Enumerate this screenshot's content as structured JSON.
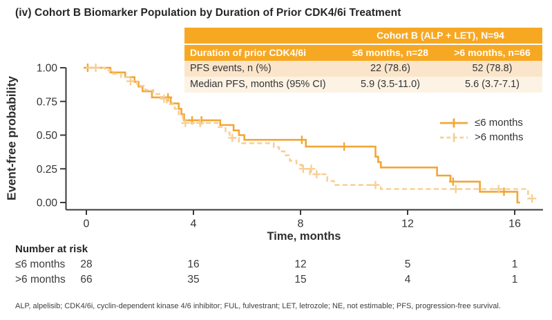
{
  "title": "(iv) Cohort B Biomarker Population by Duration of Prior CDK4/6i Treatment",
  "colors": {
    "header_orange": "#F7A823",
    "row_peach": "#FAE5CB",
    "row_cream": "#FDF3E4",
    "solid_curve": "#F2A636",
    "dashed_curve": "#F8CF96",
    "axis": "#3a3a3a",
    "tick_text": "#333333"
  },
  "summary_table": {
    "merged_header": "Cohort B (ALP + LET), N=94",
    "col_header_row": [
      "Duration of prior CDK4/6i",
      "≤6 months, n=28",
      ">6 months, n=66"
    ],
    "rows": [
      [
        "PFS events, n (%)",
        "22 (78.6)",
        "52 (78.8)"
      ],
      [
        "Median PFS, months (95% CI)",
        "5.9 (3.5-11.0)",
        "5.6 (3.7-7.1)"
      ]
    ]
  },
  "chart_data": {
    "type": "line",
    "subtype": "kaplan-meier-step",
    "xlabel": "Time, months",
    "ylabel": "Event-free probability",
    "xlim": [
      0,
      17.2
    ],
    "ylim": [
      0,
      1.0
    ],
    "xticks": [
      0,
      4,
      8,
      12,
      16
    ],
    "yticks": [
      0.0,
      0.25,
      0.5,
      0.75,
      1.0
    ],
    "ytick_labels": [
      "0.00",
      "0.25",
      "0.50",
      "0.75",
      "1.00"
    ],
    "grid": false,
    "legend_position": "right-middle",
    "series": [
      {
        "name": "≤6 months",
        "style": "solid",
        "n": 28,
        "points": [
          [
            0,
            1.0
          ],
          [
            0.9,
            0.965
          ],
          [
            1.45,
            0.93
          ],
          [
            1.8,
            0.895
          ],
          [
            1.95,
            0.86
          ],
          [
            2.1,
            0.825
          ],
          [
            2.45,
            0.78
          ],
          [
            3.15,
            0.735
          ],
          [
            3.45,
            0.695
          ],
          [
            3.55,
            0.655
          ],
          [
            3.65,
            0.61
          ],
          [
            5.0,
            0.575
          ],
          [
            5.5,
            0.535
          ],
          [
            5.7,
            0.5
          ],
          [
            5.9,
            0.465
          ],
          [
            8.2,
            0.415
          ],
          [
            10.8,
            0.34
          ],
          [
            10.9,
            0.3
          ],
          [
            11.0,
            0.26
          ],
          [
            13.1,
            0.2
          ],
          [
            13.6,
            0.155
          ],
          [
            14.7,
            0.08
          ],
          [
            16.1,
            0.0
          ]
        ],
        "end_time": 16.2,
        "censors": [
          [
            0.05,
            1.0
          ],
          [
            3.05,
            0.78
          ],
          [
            3.95,
            0.61
          ],
          [
            4.3,
            0.61
          ],
          [
            8.05,
            0.465
          ],
          [
            9.63,
            0.415
          ],
          [
            13.7,
            0.155
          ],
          [
            15.6,
            0.08
          ]
        ]
      },
      {
        "name": ">6 months",
        "style": "dashed",
        "n": 66,
        "points": [
          [
            0,
            1.0
          ],
          [
            0.7,
            0.98
          ],
          [
            1.0,
            0.955
          ],
          [
            1.3,
            0.93
          ],
          [
            1.6,
            0.9
          ],
          [
            1.9,
            0.865
          ],
          [
            2.2,
            0.835
          ],
          [
            2.5,
            0.805
          ],
          [
            2.8,
            0.77
          ],
          [
            3.0,
            0.73
          ],
          [
            3.3,
            0.695
          ],
          [
            3.45,
            0.655
          ],
          [
            3.6,
            0.59
          ],
          [
            4.9,
            0.56
          ],
          [
            5.2,
            0.52
          ],
          [
            5.35,
            0.48
          ],
          [
            5.7,
            0.44
          ],
          [
            7.0,
            0.41
          ],
          [
            7.2,
            0.38
          ],
          [
            7.4,
            0.35
          ],
          [
            7.6,
            0.31
          ],
          [
            7.85,
            0.28
          ],
          [
            8.05,
            0.25
          ],
          [
            8.35,
            0.21
          ],
          [
            9.0,
            0.16
          ],
          [
            9.25,
            0.13
          ],
          [
            11.0,
            0.1
          ],
          [
            16.5,
            0.03
          ]
        ],
        "end_time": 16.8,
        "censors": [
          [
            0.35,
            1.0
          ],
          [
            1.65,
            0.9
          ],
          [
            2.9,
            0.77
          ],
          [
            3.7,
            0.59
          ],
          [
            4.25,
            0.59
          ],
          [
            5.45,
            0.48
          ],
          [
            8.1,
            0.25
          ],
          [
            8.4,
            0.25
          ],
          [
            8.6,
            0.21
          ],
          [
            10.8,
            0.13
          ],
          [
            13.8,
            0.1
          ],
          [
            15.4,
            0.1
          ],
          [
            16.65,
            0.03
          ]
        ]
      }
    ]
  },
  "number_at_risk": {
    "heading": "Number at risk",
    "timepoints": [
      0,
      4,
      8,
      12,
      16
    ],
    "rows": [
      {
        "label": "≤6 months",
        "values": [
          "28",
          "16",
          "12",
          "5",
          "1"
        ]
      },
      {
        "label": ">6 months",
        "values": [
          "66",
          "35",
          "15",
          "4",
          "1"
        ]
      }
    ]
  },
  "footnote": "ALP, alpelisib; CDK4/6i, cyclin-dependent kinase 4/6 inhibitor; FUL, fulvestrant; LET, letrozole; NE, not estimable; PFS, progression-free survival."
}
